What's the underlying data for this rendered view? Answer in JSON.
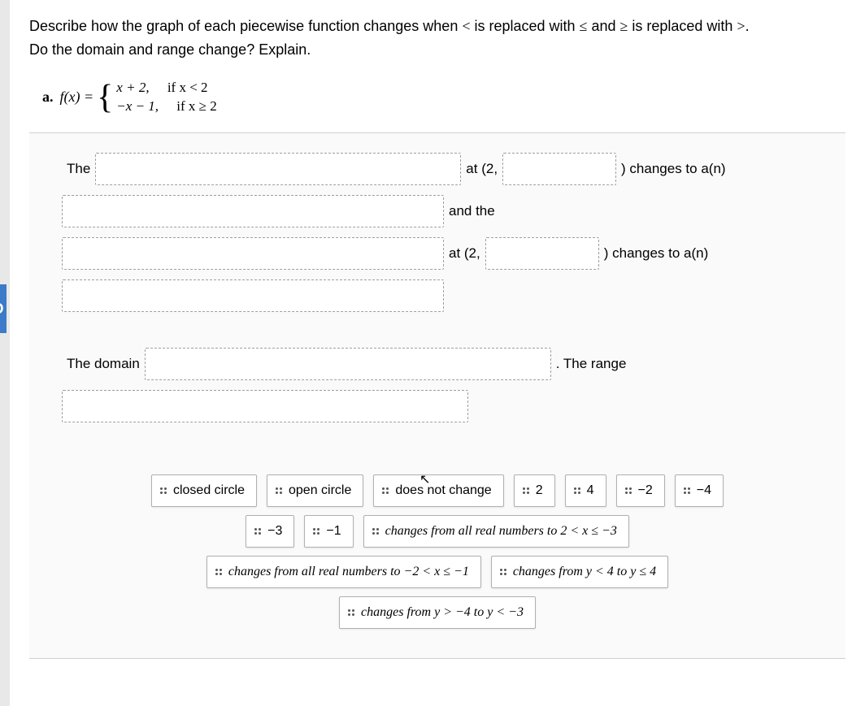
{
  "intro": {
    "line1_pre": "Describe how the graph of each piecewise function changes when ",
    "line1_sym1": "<",
    "line1_mid1": " is replaced with ",
    "line1_sym2": "≤",
    "line1_mid2": " and ",
    "line1_sym3": "≥",
    "line1_mid3": " is replaced with ",
    "line1_sym4": ">",
    "line1_end": ".",
    "line2": "Do the domain and range change? Explain."
  },
  "partA": {
    "label": "a.",
    "fx": "f(x) = ",
    "piece1_expr": "x + 2,",
    "piece1_cond": "if x < 2",
    "piece2_expr": "−x − 1,",
    "piece2_cond": "if x ≥ 2"
  },
  "sentence": {
    "the": "The",
    "at2": "at (2,",
    "close_paren_changes": ") changes to a(n)",
    "and_the": "and the",
    "the_domain": "The domain",
    "the_range": ". The range"
  },
  "bank": {
    "closed_circle": "closed circle",
    "open_circle": "open circle",
    "does_not_change": "does not change",
    "n2": "2",
    "n4": "4",
    "neg2": "−2",
    "neg4": "−4",
    "neg3": "−3",
    "neg1": "−1",
    "changes_2lt": "changes from all real numbers to 2 < x ≤ −3",
    "changes_neg2lt": "changes from all real numbers to −2 < x ≤ −1",
    "changes_y4": "changes from y < 4 to y ≤ 4",
    "changes_yneg4": "changes from y > −4 to y < −3"
  },
  "sideTab": "D",
  "colors": {
    "page_bg": "#ffffff",
    "body_bg": "#e8e8e8",
    "tab_bg": "#3b7bc9",
    "dash_border": "#9aa0a6",
    "tile_border": "#b0b0b0"
  }
}
